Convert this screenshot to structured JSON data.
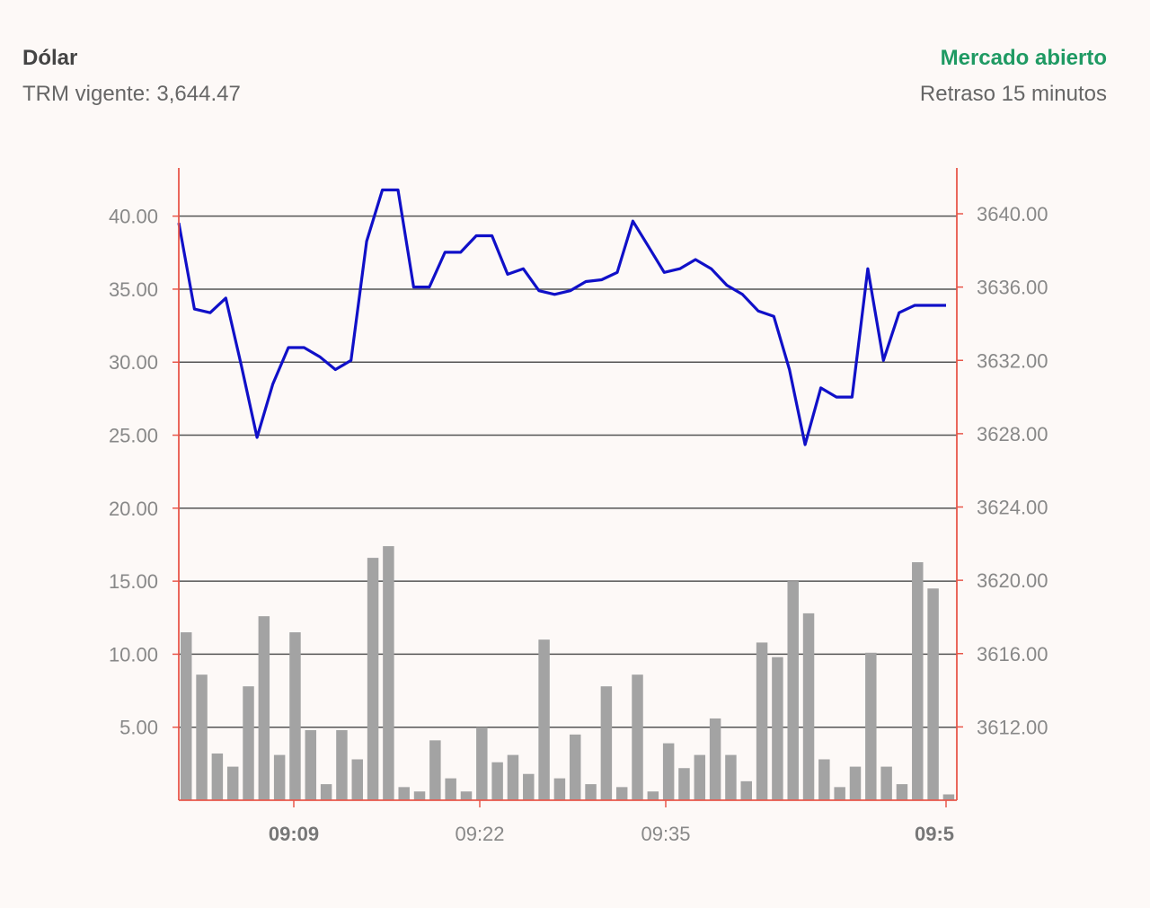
{
  "header": {
    "title": "Dólar",
    "trm_label": "TRM vigente: 3,644.47",
    "status": "Mercado abierto",
    "delay": "Retraso 15 minutos"
  },
  "colors": {
    "status": "#1f9a63",
    "price_line": "#1010c8",
    "volume_bars": "#a3a3a3",
    "axes": "#e8574a",
    "grid": "#555555",
    "tick_text": "#888888"
  },
  "chart_data": {
    "type": "line+bar",
    "x_ticks": [
      {
        "label": "09:09",
        "bold": true
      },
      {
        "label": "09:22",
        "bold": false
      },
      {
        "label": "09:35",
        "bold": false
      },
      {
        "label": "09:5",
        "bold": true
      }
    ],
    "y_left_ticks": [
      "40.00",
      "35.00",
      "30.00",
      "25.00",
      "20.00",
      "15.00",
      "10.00",
      "5.00"
    ],
    "y_right_ticks": [
      "3640.00",
      "3636.00",
      "3632.00",
      "3628.00",
      "3624.00",
      "3620.00",
      "3616.00",
      "3612.00"
    ],
    "y_left_range": [
      0,
      43.3
    ],
    "y_right_range": [
      3608,
      3642.5
    ],
    "grid": true,
    "price_series": [
      3639.5,
      3634.8,
      3634.6,
      3635.4,
      3631.7,
      3627.8,
      3630.7,
      3632.7,
      3632.7,
      3632.2,
      3631.5,
      3632.0,
      3638.5,
      3641.3,
      3641.3,
      3636.0,
      3636.0,
      3637.9,
      3637.9,
      3638.8,
      3638.8,
      3636.7,
      3637.0,
      3635.8,
      3635.6,
      3635.8,
      3636.3,
      3636.4,
      3636.8,
      3639.6,
      3638.2,
      3636.8,
      3637.0,
      3637.5,
      3637.0,
      3636.1,
      3635.6,
      3634.7,
      3634.4,
      3631.5,
      3627.4,
      3630.5,
      3630.0,
      3630.0,
      3637.0,
      3632.0,
      3634.6,
      3635.0,
      3635.0,
      3635.0
    ],
    "volume_series": [
      11.5,
      8.6,
      3.2,
      2.3,
      7.8,
      12.6,
      3.1,
      11.5,
      4.8,
      1.1,
      4.8,
      2.8,
      16.6,
      17.4,
      0.9,
      0.6,
      4.1,
      1.5,
      0.6,
      5.0,
      2.6,
      3.1,
      1.8,
      11.0,
      1.5,
      4.5,
      1.1,
      7.8,
      0.9,
      8.6,
      0.6,
      3.9,
      2.2,
      3.1,
      5.6,
      3.1,
      1.3,
      10.8,
      9.8,
      15.0,
      12.8,
      2.8,
      0.9,
      2.3,
      10.1,
      2.3,
      1.1,
      16.3,
      14.5,
      0.4
    ]
  }
}
